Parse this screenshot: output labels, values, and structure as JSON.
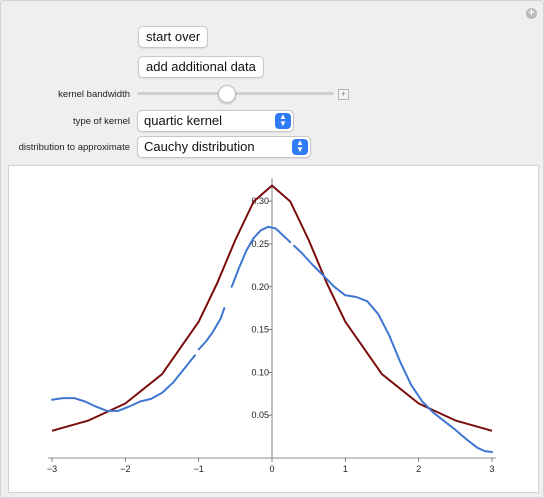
{
  "controls": {
    "start_over_label": "start over",
    "add_data_label": "add additional data",
    "bandwidth_label": "kernel bandwidth",
    "bandwidth_value": 0.45,
    "kernel_type_label": "type of kernel",
    "kernel_type_value": "quartic kernel",
    "distribution_label": "distribution to approximate",
    "distribution_value": "Cauchy distribution"
  },
  "colors": {
    "cauchy_curve": "#7b0c0c",
    "kde_curve": "#3f76d1",
    "selector_accent": "#2f7cf6"
  },
  "chart_data": {
    "type": "line",
    "title": "",
    "xlabel": "",
    "ylabel": "",
    "xlim": [
      -3,
      3
    ],
    "ylim": [
      0,
      0.32
    ],
    "xticks": [
      -3,
      -2,
      -1,
      0,
      1,
      2,
      3
    ],
    "xtick_labels": [
      "−3",
      "−2",
      "−1",
      "0",
      "1",
      "2",
      "3"
    ],
    "yticks": [
      0.05,
      0.1,
      0.15,
      0.2,
      0.25,
      0.3
    ],
    "ytick_labels": [
      "0.05",
      "0.10",
      "0.15",
      "0.20",
      "0.25",
      "0.30"
    ],
    "grid": false,
    "series": [
      {
        "color": "#7b0c0c",
        "x": [
          -3,
          -2.5,
          -2,
          -1.5,
          -1,
          -0.75,
          -0.5,
          -0.25,
          0,
          0.25,
          0.5,
          0.75,
          1,
          1.5,
          2,
          2.5,
          3
        ],
        "values": [
          0.0318,
          0.0439,
          0.0637,
          0.0979,
          0.1592,
          0.2037,
          0.2546,
          0.2996,
          0.3183,
          0.2996,
          0.2546,
          0.2037,
          0.1592,
          0.0979,
          0.0637,
          0.0439,
          0.0318
        ]
      },
      {
        "color": "#3f76d1",
        "segments": [
          {
            "x": [
              -3,
              -2.85,
              -2.7,
              -2.55,
              -2.4,
              -2.25,
              -2.1,
              -1.95,
              -1.8,
              -1.65,
              -1.5,
              -1.35,
              -1.2,
              -1.05
            ],
            "values": [
              0.068,
              0.07,
              0.07,
              0.066,
              0.06,
              0.055,
              0.055,
              0.06,
              0.066,
              0.069,
              0.076,
              0.088,
              0.104,
              0.12
            ]
          },
          {
            "x": [
              -1.0,
              -0.9,
              -0.8,
              -0.7,
              -0.65
            ],
            "values": [
              0.127,
              0.136,
              0.148,
              0.163,
              0.175
            ]
          },
          {
            "x": [
              -0.55,
              -0.45,
              -0.35,
              -0.25,
              -0.15,
              -0.05,
              0.05,
              0.15,
              0.25
            ],
            "values": [
              0.2,
              0.222,
              0.242,
              0.257,
              0.266,
              0.27,
              0.268,
              0.26,
              0.252
            ]
          },
          {
            "x": [
              0.3,
              0.4,
              0.55,
              0.7,
              0.85,
              1.0,
              1.15,
              1.3,
              1.45,
              1.6,
              1.75,
              1.9,
              2.05,
              2.2,
              2.35,
              2.5,
              2.65,
              2.8,
              2.9,
              3.0
            ],
            "values": [
              0.248,
              0.24,
              0.226,
              0.213,
              0.2,
              0.19,
              0.188,
              0.183,
              0.168,
              0.143,
              0.112,
              0.085,
              0.066,
              0.053,
              0.043,
              0.033,
              0.022,
              0.012,
              0.008,
              0.007
            ]
          }
        ]
      }
    ]
  }
}
